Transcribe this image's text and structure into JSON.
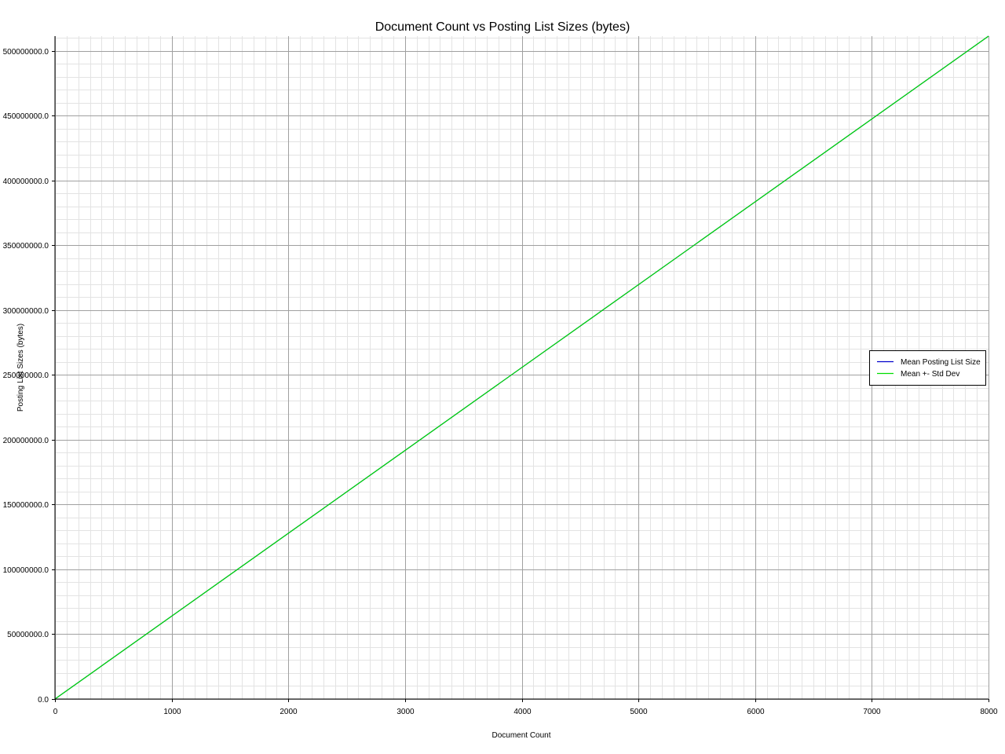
{
  "chart_data": {
    "type": "line",
    "title": "Document Count vs Posting List Sizes (bytes)",
    "xlabel": "Document Count",
    "ylabel": "Posting List Sizes (bytes)",
    "xlim": [
      0,
      8000
    ],
    "ylim": [
      0,
      511500000
    ],
    "x_ticks": [
      0,
      1000,
      2000,
      3000,
      4000,
      5000,
      6000,
      7000,
      8000
    ],
    "x_tick_labels": [
      "0",
      "1000",
      "2000",
      "3000",
      "4000",
      "5000",
      "6000",
      "7000",
      "8000"
    ],
    "y_ticks": [
      0,
      50000000,
      100000000,
      150000000,
      200000000,
      250000000,
      300000000,
      350000000,
      400000000,
      450000000,
      500000000
    ],
    "y_tick_labels": [
      "0.0",
      "50000000.0",
      "100000000.0",
      "150000000.0",
      "200000000.0",
      "250000000.0",
      "300000000.0",
      "350000000.0",
      "400000000.0",
      "450000000.0",
      "500000000.0"
    ],
    "grid": true,
    "minor_grid": true,
    "legend_position": "right",
    "series": [
      {
        "name": "Mean Posting List Size",
        "color": "#0000cc",
        "x": [
          0,
          8000
        ],
        "y": [
          0,
          511500000
        ]
      },
      {
        "name": "Mean +- Std Dev",
        "color": "#00dd00",
        "x": [
          0,
          8000
        ],
        "y": [
          0,
          511500000
        ]
      }
    ]
  }
}
